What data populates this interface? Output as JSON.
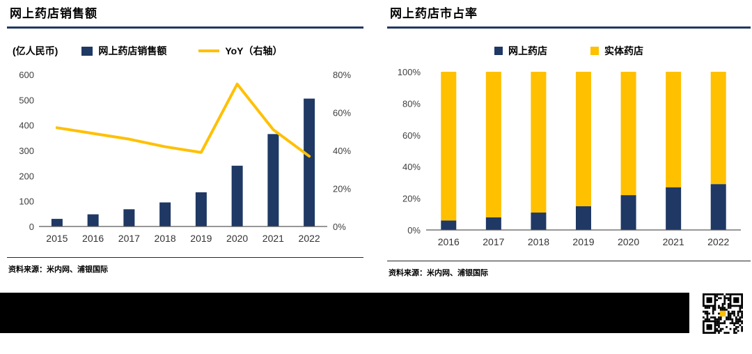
{
  "colors": {
    "navy": "#1f3864",
    "yellow": "#ffc000",
    "axis": "#595959",
    "rule": "#1f3864"
  },
  "charts": [
    {
      "title": "网上药店销售额",
      "unit_label": "(亿人民币)",
      "legend": [
        {
          "label": "网上药店销售额",
          "swatch": "navy-bar"
        },
        {
          "label": "YoY（右轴）",
          "swatch": "yellow-line"
        }
      ],
      "source": "资料来源：米内网、浦银国际"
    },
    {
      "title": "网上药店市占率",
      "legend": [
        {
          "label": "网上药店",
          "swatch": "navy-square"
        },
        {
          "label": "实体药店",
          "swatch": "yellow-square"
        }
      ],
      "source": "资料来源：米内网、浦银国际"
    }
  ],
  "chart_data": [
    {
      "type": "bar",
      "title": "网上药店销售额",
      "categories": [
        "2015",
        "2016",
        "2017",
        "2018",
        "2019",
        "2020",
        "2021",
        "2022"
      ],
      "series": [
        {
          "name": "网上药店销售额",
          "type": "bar",
          "axis": "left",
          "values": [
            30,
            48,
            68,
            95,
            135,
            240,
            365,
            505
          ]
        },
        {
          "name": "YoY（右轴）",
          "type": "line",
          "axis": "right",
          "values": [
            52,
            49,
            46,
            42,
            39,
            75,
            51,
            37
          ]
        }
      ],
      "ylabel_left": "(亿人民币)",
      "ylim_left": [
        0,
        600
      ],
      "yticks_left": [
        0,
        100,
        200,
        300,
        400,
        500,
        600
      ],
      "ylim_right": [
        0,
        80
      ],
      "yticks_right": [
        0,
        20,
        40,
        60,
        80
      ],
      "grid": false,
      "legend_position": "top"
    },
    {
      "type": "bar",
      "subtype": "stacked-100",
      "title": "网上药店市占率",
      "categories": [
        "2016",
        "2017",
        "2018",
        "2019",
        "2020",
        "2021",
        "2022"
      ],
      "series": [
        {
          "name": "网上药店",
          "values": [
            6,
            8,
            11,
            15,
            22,
            27,
            29
          ]
        },
        {
          "name": "实体药店",
          "values": [
            94,
            92,
            89,
            85,
            78,
            73,
            71
          ]
        }
      ],
      "ylim": [
        0,
        100
      ],
      "yticks": [
        0,
        20,
        40,
        60,
        80,
        100
      ],
      "grid": false,
      "legend_position": "top"
    }
  ]
}
